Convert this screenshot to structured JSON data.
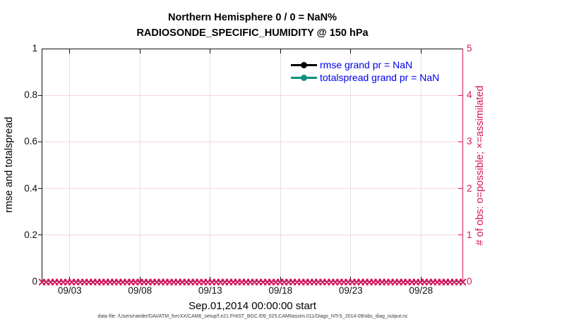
{
  "colors": {
    "crimson": "#d6155f",
    "teal": "#0e8f80",
    "rmse_black": "#000000",
    "legend_text_blue": "#0000ee",
    "vgrid_gray": "#e2e2e2",
    "hgrid_pink": "#f6d3e1"
  },
  "title": {
    "line1": "Northern Hemisphere 0 / 0 = NaN%",
    "line2": "RADIOSONDE_SPECIFIC_HUMIDITY @ 150 hPa"
  },
  "legend": {
    "items": [
      {
        "label": "rmse grand pr = NaN",
        "color": "#000000"
      },
      {
        "label": "totalspread grand pr = NaN",
        "color": "#0e8f80"
      }
    ]
  },
  "xlabel": "Sep.01,2014 00:00:00 start",
  "footer": "data file: /Users/raeder/DAI/ATM_forcXX/CAM6_setup/f.e21.FHIST_BGC.f09_025.CAM6assim.011/Diags_NTrS_2014-09/obs_diag_output.nc",
  "chart_data": {
    "type": "line",
    "title": "Northern Hemisphere 0 / 0 = NaN%  RADIOSONDE_SPECIFIC_HUMIDITY @ 150 hPa",
    "grid": "on",
    "legend_position": "top-right-inside",
    "x_axis": {
      "label": "Sep.01,2014 00:00:00 start",
      "range_days": 30,
      "ticks": [
        {
          "label": "09/03",
          "f": 0.0667
        },
        {
          "label": "09/08",
          "f": 0.2333
        },
        {
          "label": "09/13",
          "f": 0.4
        },
        {
          "label": "09/18",
          "f": 0.5667
        },
        {
          "label": "09/23",
          "f": 0.7333
        },
        {
          "label": "09/28",
          "f": 0.9
        }
      ]
    },
    "left_axis": {
      "label": "rmse and totalspread",
      "range": [
        0,
        1
      ],
      "ticks": [
        {
          "label": "0",
          "f": 0.0
        },
        {
          "label": "0.2",
          "f": 0.2
        },
        {
          "label": "0.4",
          "f": 0.4
        },
        {
          "label": "0.6",
          "f": 0.6
        },
        {
          "label": "0.8",
          "f": 0.8
        },
        {
          "label": "1",
          "f": 1.0
        }
      ]
    },
    "right_axis": {
      "label": "# of obs: o=possible; ×=assimilated",
      "range": [
        0,
        5
      ],
      "color": "#d6155f",
      "ticks": [
        {
          "label": "0",
          "f": 0.0
        },
        {
          "label": "1",
          "f": 0.2
        },
        {
          "label": "2",
          "f": 0.4
        },
        {
          "label": "3",
          "f": 0.6
        },
        {
          "label": "4",
          "f": 0.8
        },
        {
          "label": "5",
          "f": 1.0
        }
      ]
    },
    "series": [
      {
        "name": "rmse",
        "axis": "left",
        "color": "#000000",
        "marker": "filled-circle",
        "all_values_nan": true
      },
      {
        "name": "totalspread",
        "axis": "left",
        "color": "#0e8f80",
        "marker": "filled-circle",
        "all_values_nan": true
      },
      {
        "name": "observations possible",
        "axis": "right",
        "marker": "o",
        "constant_value": 0,
        "count": 100,
        "color": "#d6155f"
      },
      {
        "name": "observations assimilated",
        "axis": "right",
        "marker": "x",
        "constant_value": 0,
        "count": 100,
        "color": "#d6155f"
      }
    ]
  }
}
